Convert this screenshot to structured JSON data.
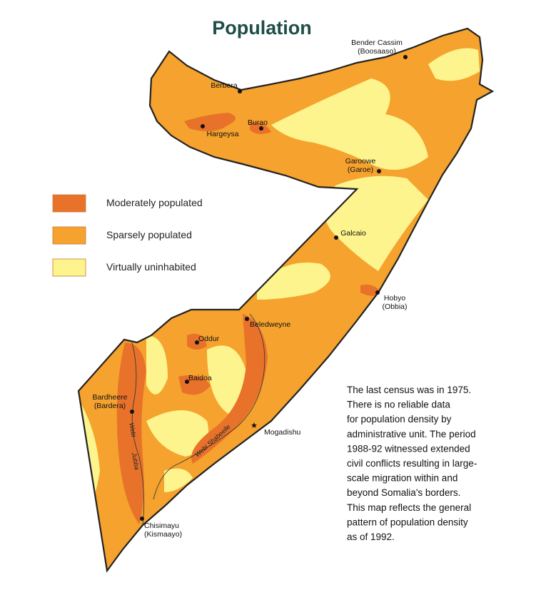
{
  "title": "Population",
  "legend": [
    {
      "label": "Moderately populated",
      "color": "#e8722a"
    },
    {
      "label": "Sparsely populated",
      "color": "#f5a22e"
    },
    {
      "label": "Virtually uninhabited",
      "color": "#fdf48e"
    }
  ],
  "cities": [
    {
      "name": "Bender Cassim",
      "alt": "(Boosaaso)"
    },
    {
      "name": "Berbera"
    },
    {
      "name": "Hargeysa"
    },
    {
      "name": "Burao"
    },
    {
      "name": "Garoowe",
      "alt": "(Garoe)"
    },
    {
      "name": "Galcaio"
    },
    {
      "name": "Hobyo",
      "alt": "(Obbia)"
    },
    {
      "name": "Beledweyne"
    },
    {
      "name": "Oddur"
    },
    {
      "name": "Baidoa"
    },
    {
      "name": "Bardheere",
      "alt": "(Bardera)"
    },
    {
      "name": "Mogadishu"
    },
    {
      "name": "Chisimayu",
      "alt": "(Kismaayo)"
    }
  ],
  "river_labels": [
    "Webi",
    "Jubba",
    "Webi Shabeelle"
  ],
  "note": [
    "The last census was in 1975.",
    "There is no reliable data",
    "for population density by",
    "administrative unit.  The period",
    "1988-92 witnessed extended",
    "civil conflicts resulting in large-",
    "scale migration within and",
    "beyond Somalia's borders.",
    "This map reflects the general",
    "pattern of population density",
    "as of 1992."
  ]
}
